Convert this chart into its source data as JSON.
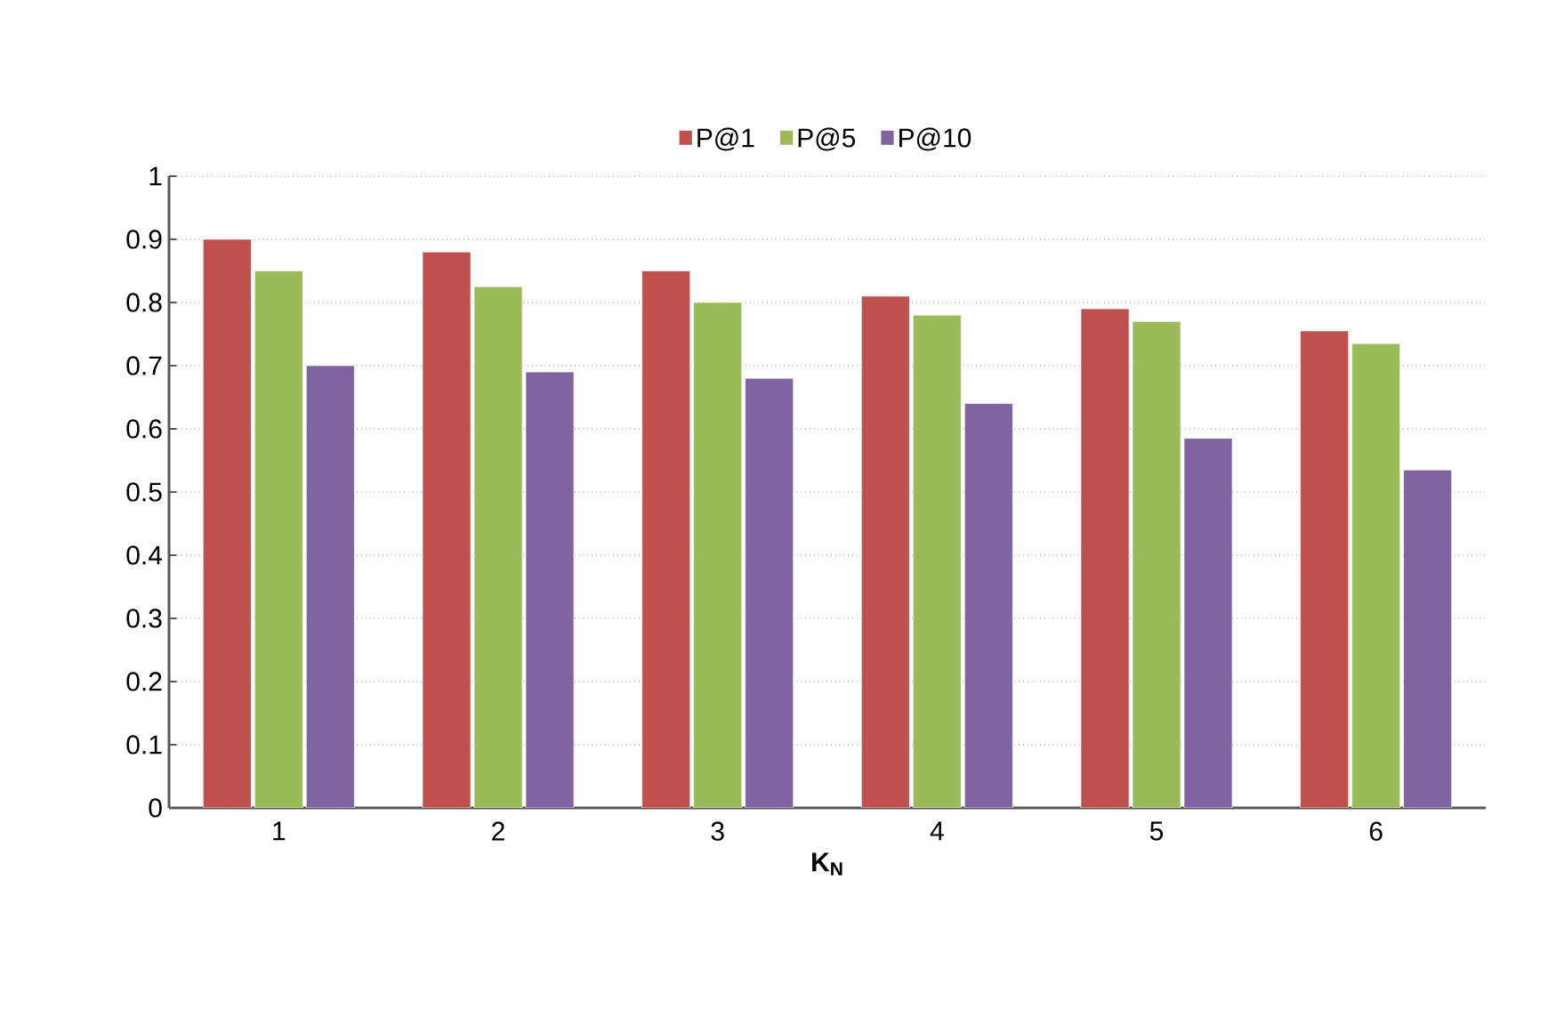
{
  "chart_data": {
    "type": "bar",
    "xlabel": "K$_{N}$",
    "categories": [
      "1",
      "2",
      "3",
      "4",
      "5",
      "6"
    ],
    "series": [
      {
        "name": "P@1",
        "color": "#c0504d",
        "values": [
          0.9,
          0.88,
          0.85,
          0.81,
          0.79,
          0.755
        ]
      },
      {
        "name": "P@5",
        "color": "#9bbb59",
        "values": [
          0.85,
          0.825,
          0.8,
          0.78,
          0.77,
          0.735
        ]
      },
      {
        "name": "P@10",
        "color": "#8064a2",
        "values": [
          0.7,
          0.69,
          0.68,
          0.64,
          0.585,
          0.535
        ]
      }
    ],
    "ylim": [
      0,
      1
    ],
    "yticks": [
      0,
      0.1,
      0.2,
      0.3,
      0.4,
      0.5,
      0.6,
      0.7,
      0.8,
      0.9,
      1
    ],
    "grid": "y",
    "legend": "top"
  }
}
